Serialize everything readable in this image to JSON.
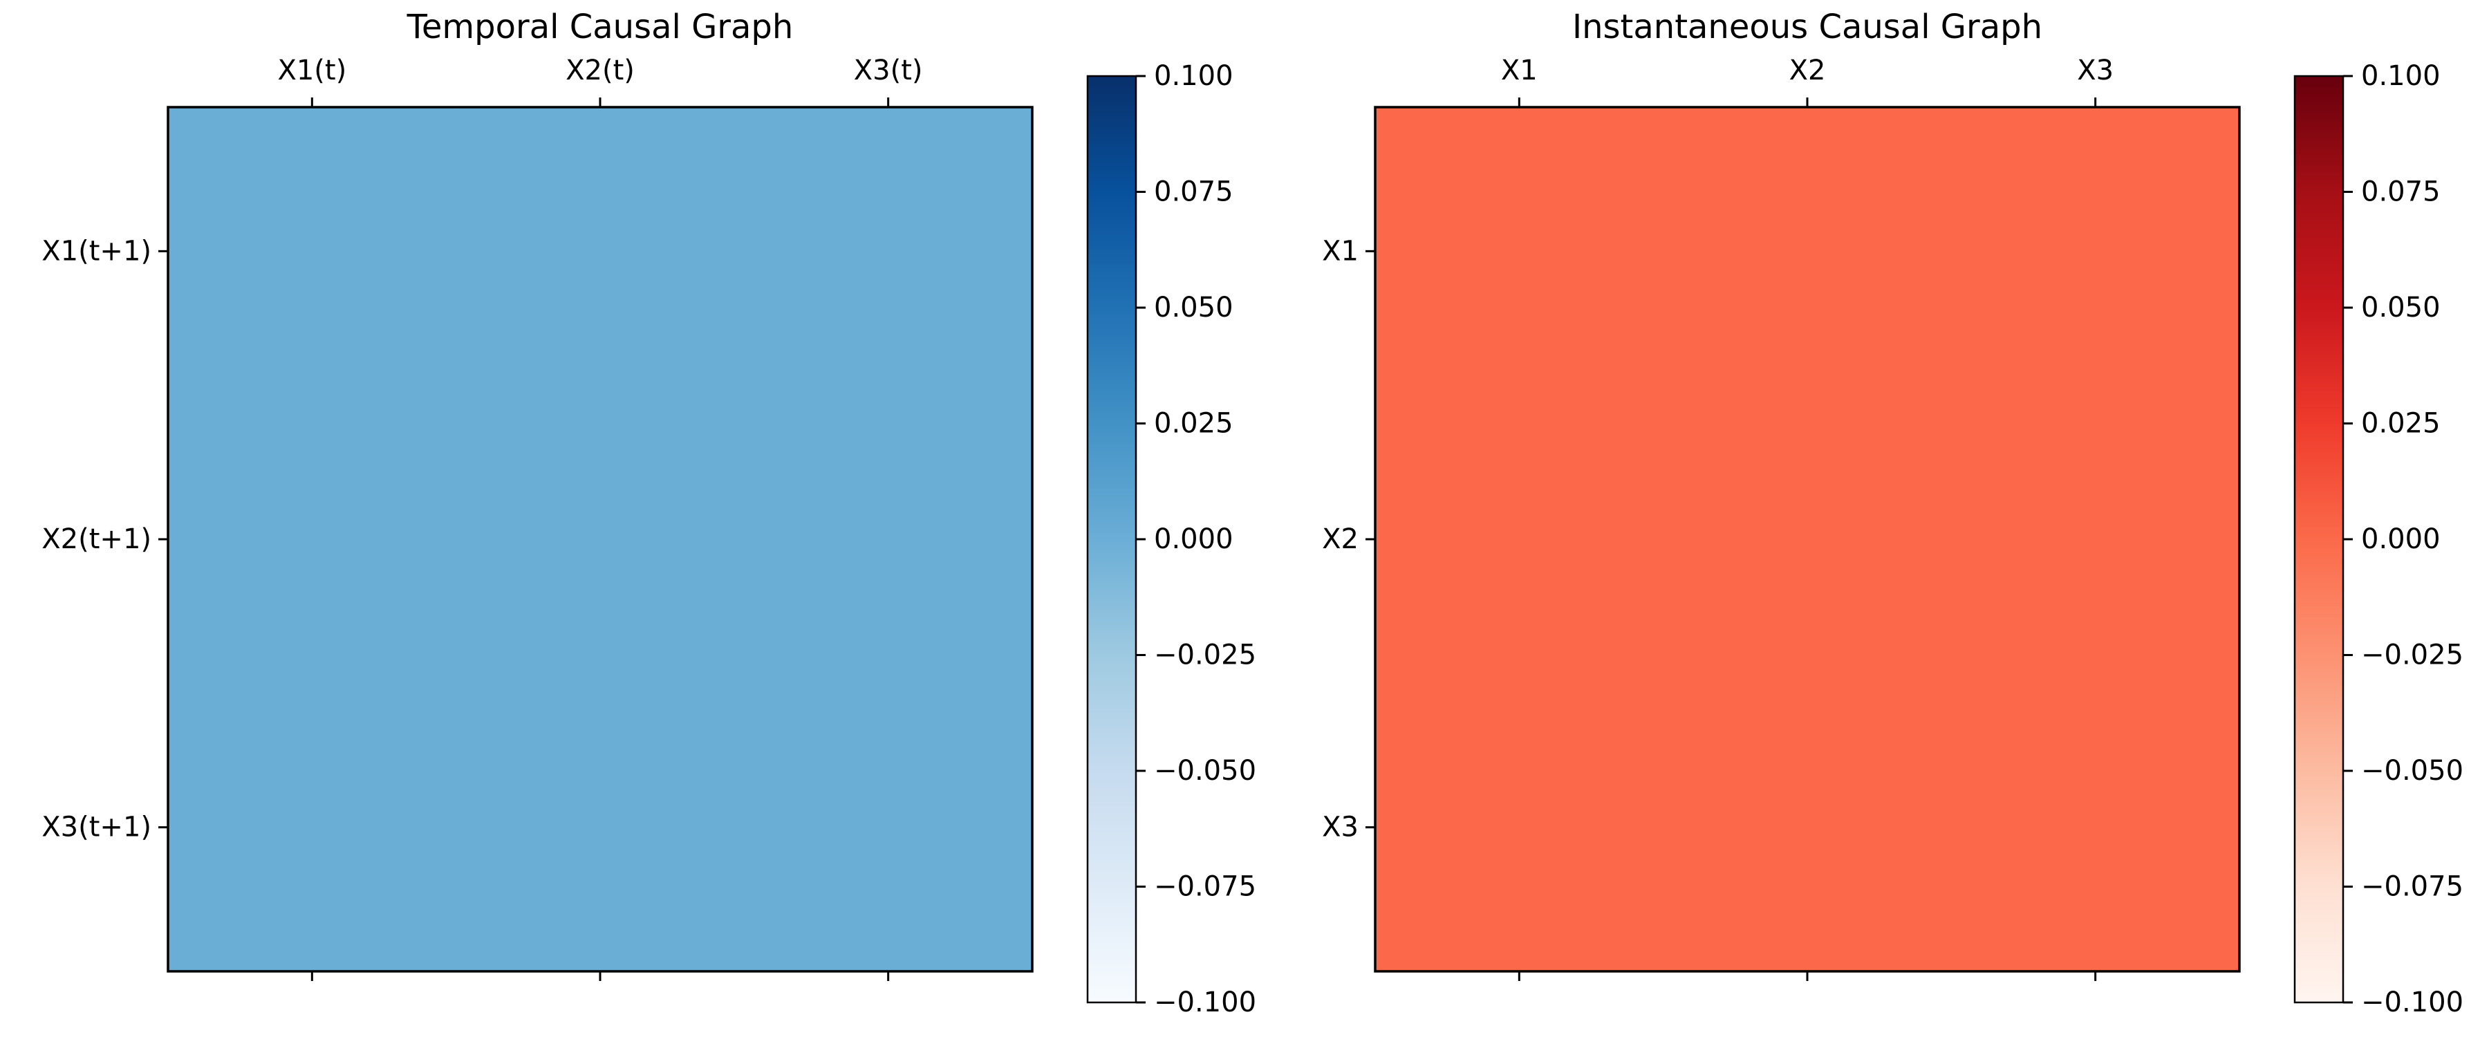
{
  "chart_data": [
    {
      "type": "heatmap",
      "title": "Temporal Causal Graph",
      "x_categories": [
        "X1(t)",
        "X2(t)",
        "X3(t)"
      ],
      "y_categories": [
        "X1(t+1)",
        "X2(t+1)",
        "X3(t+1)"
      ],
      "values": [
        [
          0,
          0,
          0
        ],
        [
          0,
          0,
          0
        ],
        [
          0,
          0,
          0
        ]
      ],
      "colormap": "Blues",
      "colorbar": {
        "range": [
          -0.1,
          0.1
        ],
        "ticks": [
          0.1,
          0.075,
          0.05,
          0.025,
          0.0,
          -0.025,
          -0.05,
          -0.075,
          -0.1
        ],
        "tick_labels": [
          "0.100",
          "0.075",
          "0.050",
          "0.025",
          "0.000",
          "−0.025",
          "−0.050",
          "−0.075",
          "−0.100"
        ],
        "gradient": [
          "#f7fbff",
          "#deebf7",
          "#c6dbef",
          "#9ecae1",
          "#6baed6",
          "#4292c6",
          "#2171b5",
          "#08519c",
          "#08306b"
        ]
      },
      "cell_color": "#6aaed6",
      "xlabel": "",
      "ylabel": ""
    },
    {
      "type": "heatmap",
      "title": "Instantaneous Causal Graph",
      "x_categories": [
        "X1",
        "X2",
        "X3"
      ],
      "y_categories": [
        "X1",
        "X2",
        "X3"
      ],
      "values": [
        [
          0,
          0,
          0
        ],
        [
          0,
          0,
          0
        ],
        [
          0,
          0,
          0
        ]
      ],
      "colormap": "Reds",
      "colorbar": {
        "range": [
          -0.1,
          0.1
        ],
        "ticks": [
          0.1,
          0.075,
          0.05,
          0.025,
          0.0,
          -0.025,
          -0.05,
          -0.075,
          -0.1
        ],
        "tick_labels": [
          "0.100",
          "0.075",
          "0.050",
          "0.025",
          "0.000",
          "−0.025",
          "−0.050",
          "−0.075",
          "−0.100"
        ],
        "gradient": [
          "#fff5f0",
          "#fee0d2",
          "#fcbba1",
          "#fc9272",
          "#fb6a4a",
          "#ef3b2c",
          "#cb181d",
          "#a50f15",
          "#67000d"
        ]
      },
      "cell_color": "#fb694a",
      "xlabel": "",
      "ylabel": ""
    }
  ]
}
